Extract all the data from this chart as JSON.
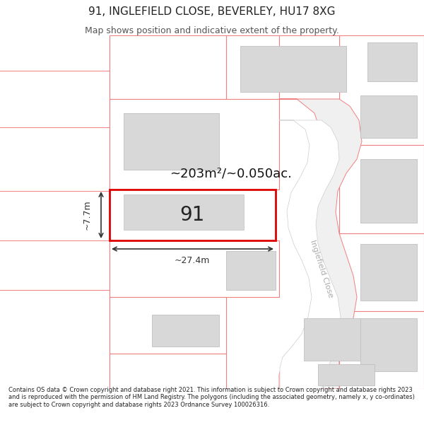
{
  "title": "91, INGLEFIELD CLOSE, BEVERLEY, HU17 8XG",
  "subtitle": "Map shows position and indicative extent of the property.",
  "footer": "Contains OS data © Crown copyright and database right 2021. This information is subject to Crown copyright and database rights 2023 and is reproduced with the permission of HM Land Registry. The polygons (including the associated geometry, namely x, y co-ordinates) are subject to Crown copyright and database rights 2023 Ordnance Survey 100026316.",
  "area_label": "~203m²/~0.050ac.",
  "width_label": "~27.4m",
  "height_label": "~7.7m",
  "property_number": "91",
  "bg_color": "#ffffff",
  "plot_outline_color": "#f08080",
  "building_fill": "#d8d8d8",
  "building_outline": "#c0c0c0",
  "highlight_fill": "#ffffff",
  "highlight_outline": "#dd0000",
  "road_label_color": "#aaaaaa",
  "street_name": "Inglefield Close",
  "title_fontsize": 11,
  "subtitle_fontsize": 9,
  "footer_fontsize": 6.0
}
